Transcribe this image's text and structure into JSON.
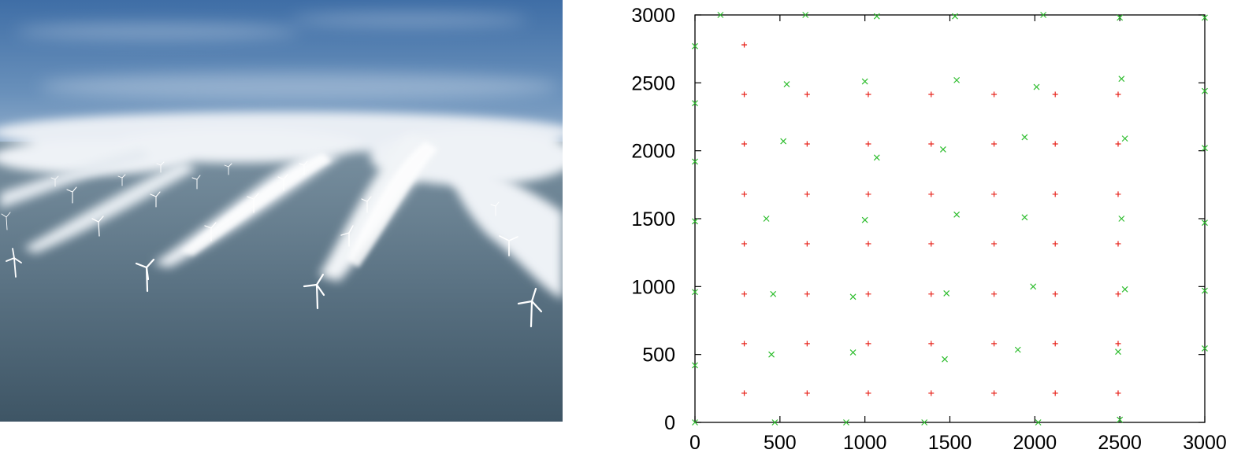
{
  "photo": {
    "subject": "offshore wind farm with turbine wake clouds over sea",
    "colors": {
      "sky_top": "#4f7db3",
      "sky_low": "#8aa9c9",
      "cloud": "#eef2f6",
      "sea_top": "#6f8799",
      "sea_bottom": "#3c5466",
      "turbine": "#ffffff"
    }
  },
  "chart_data": {
    "type": "scatter",
    "xlim": [
      0,
      3000
    ],
    "ylim": [
      0,
      3000
    ],
    "xticks": [
      "0",
      "500",
      "1000",
      "1500",
      "2000",
      "2500",
      "3000"
    ],
    "yticks": [
      "0",
      "500",
      "1000",
      "1500",
      "2000",
      "2500",
      "3000"
    ],
    "grid": false,
    "legend": "none",
    "series": [
      {
        "marker": "plus",
        "color": "#e8261e",
        "points": [
          [
            290,
            2780
          ],
          [
            290,
            2415
          ],
          [
            660,
            2415
          ],
          [
            1020,
            2415
          ],
          [
            1390,
            2415
          ],
          [
            1760,
            2415
          ],
          [
            2120,
            2415
          ],
          [
            2490,
            2415
          ],
          [
            290,
            2050
          ],
          [
            660,
            2050
          ],
          [
            1020,
            2050
          ],
          [
            1390,
            2050
          ],
          [
            1760,
            2050
          ],
          [
            2120,
            2050
          ],
          [
            2490,
            2050
          ],
          [
            290,
            1680
          ],
          [
            660,
            1680
          ],
          [
            1020,
            1680
          ],
          [
            1390,
            1680
          ],
          [
            1760,
            1680
          ],
          [
            2120,
            1680
          ],
          [
            2490,
            1680
          ],
          [
            290,
            1315
          ],
          [
            660,
            1315
          ],
          [
            1020,
            1315
          ],
          [
            1390,
            1315
          ],
          [
            1760,
            1315
          ],
          [
            2120,
            1315
          ],
          [
            2490,
            1315
          ],
          [
            290,
            945
          ],
          [
            660,
            945
          ],
          [
            1020,
            945
          ],
          [
            1390,
            945
          ],
          [
            1760,
            945
          ],
          [
            2120,
            945
          ],
          [
            2490,
            945
          ],
          [
            290,
            580
          ],
          [
            660,
            580
          ],
          [
            1020,
            580
          ],
          [
            1390,
            580
          ],
          [
            1760,
            580
          ],
          [
            2120,
            580
          ],
          [
            2490,
            580
          ],
          [
            290,
            215
          ],
          [
            660,
            215
          ],
          [
            1020,
            215
          ],
          [
            1390,
            215
          ],
          [
            1760,
            215
          ],
          [
            2120,
            215
          ],
          [
            2490,
            215
          ]
        ]
      },
      {
        "marker": "cross",
        "color": "#2ebd2e",
        "points": [
          [
            0,
            2770
          ],
          [
            0,
            2350
          ],
          [
            0,
            1920
          ],
          [
            0,
            1480
          ],
          [
            0,
            960
          ],
          [
            0,
            420
          ],
          [
            0,
            0
          ],
          [
            150,
            3000
          ],
          [
            650,
            3000
          ],
          [
            1070,
            2990
          ],
          [
            1530,
            2990
          ],
          [
            2050,
            3000
          ],
          [
            2500,
            2980
          ],
          [
            3000,
            2980
          ],
          [
            540,
            2490
          ],
          [
            1000,
            2510
          ],
          [
            1540,
            2520
          ],
          [
            2010,
            2470
          ],
          [
            2510,
            2530
          ],
          [
            3000,
            2440
          ],
          [
            520,
            2070
          ],
          [
            1460,
            2010
          ],
          [
            1070,
            1950
          ],
          [
            1940,
            2100
          ],
          [
            2530,
            2090
          ],
          [
            3000,
            2020
          ],
          [
            420,
            1500
          ],
          [
            1000,
            1490
          ],
          [
            1540,
            1530
          ],
          [
            1940,
            1510
          ],
          [
            2510,
            1500
          ],
          [
            3000,
            1470
          ],
          [
            460,
            945
          ],
          [
            930,
            925
          ],
          [
            1480,
            950
          ],
          [
            1990,
            1000
          ],
          [
            2530,
            980
          ],
          [
            3000,
            970
          ],
          [
            450,
            500
          ],
          [
            930,
            515
          ],
          [
            1470,
            465
          ],
          [
            1900,
            535
          ],
          [
            2490,
            520
          ],
          [
            3000,
            545
          ],
          [
            470,
            0
          ],
          [
            890,
            0
          ],
          [
            1350,
            0
          ],
          [
            2020,
            0
          ],
          [
            2500,
            20
          ]
        ]
      }
    ]
  }
}
